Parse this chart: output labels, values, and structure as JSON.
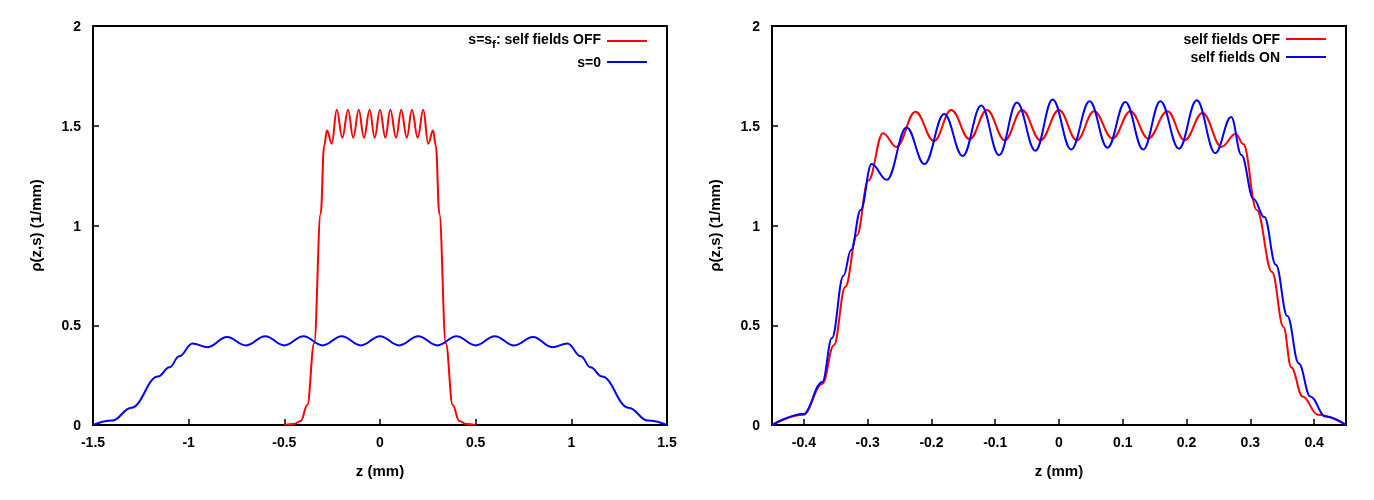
{
  "chart_data": [
    {
      "type": "line",
      "xlabel": "z (mm)",
      "ylabel": "ρ(z,s) (1/mm)",
      "xlim": [
        -1.5,
        1.5
      ],
      "ylim": [
        0,
        2
      ],
      "xticks": [
        -1.5,
        -1,
        -0.5,
        0,
        0.5,
        1,
        1.5
      ],
      "yticks": [
        0,
        0.5,
        1,
        1.5,
        2
      ],
      "legend": "top right",
      "grid": false,
      "marker": "none",
      "series": [
        {
          "name": "s=s$_{f}$: self fields OFF",
          "color": "#ff0000",
          "x": [
            -0.5,
            -0.45,
            -0.414,
            -0.38,
            -0.344,
            -0.31,
            -0.292,
            -0.277,
            -0.252,
            -0.226,
            -0.197,
            -0.167,
            -0.14,
            -0.111,
            -0.084,
            -0.054,
            -0.028,
            0,
            0.028,
            0.054,
            0.084,
            0.111,
            0.14,
            0.167,
            0.197,
            0.226,
            0.252,
            0.277,
            0.292,
            0.31,
            0.344,
            0.38,
            0.414,
            0.45,
            0.5
          ],
          "values": [
            0,
            0.005,
            0.02,
            0.1,
            0.41,
            1.06,
            1.4,
            1.476,
            1.41,
            1.58,
            1.44,
            1.58,
            1.44,
            1.58,
            1.44,
            1.58,
            1.44,
            1.58,
            1.44,
            1.58,
            1.44,
            1.58,
            1.44,
            1.58,
            1.44,
            1.58,
            1.41,
            1.476,
            1.4,
            1.06,
            0.41,
            0.1,
            0.02,
            0.005,
            0
          ]
        },
        {
          "name": "s=0",
          "color": "#0000ff",
          "x": [
            -1.5,
            -1.4,
            -1.3,
            -1.16,
            -1.1,
            -1.05,
            -0.98,
            -0.9,
            -0.8,
            -0.7,
            -0.6,
            -0.5,
            -0.4,
            -0.3,
            -0.2,
            -0.1,
            0,
            0.1,
            0.2,
            0.3,
            0.4,
            0.5,
            0.6,
            0.7,
            0.8,
            0.9,
            0.98,
            1.05,
            1.1,
            1.16,
            1.3,
            1.4,
            1.5
          ],
          "values": [
            0,
            0.022,
            0.086,
            0.243,
            0.289,
            0.344,
            0.408,
            0.39,
            0.441,
            0.399,
            0.445,
            0.399,
            0.445,
            0.399,
            0.445,
            0.399,
            0.445,
            0.399,
            0.445,
            0.399,
            0.445,
            0.399,
            0.445,
            0.399,
            0.441,
            0.39,
            0.408,
            0.344,
            0.289,
            0.243,
            0.086,
            0.022,
            0
          ]
        }
      ]
    },
    {
      "type": "line",
      "xlabel": "z (mm)",
      "ylabel": "ρ(z,s) (1/mm)",
      "xlim": [
        -0.45,
        0.45
      ],
      "ylim": [
        0,
        2
      ],
      "xticks": [
        -0.4,
        -0.3,
        -0.2,
        -0.1,
        0,
        0.1,
        0.2,
        0.3,
        0.4
      ],
      "yticks": [
        0,
        0.5,
        1,
        1.5,
        2
      ],
      "legend": "top right",
      "grid": false,
      "marker": "none",
      "series": [
        {
          "name": "self fields OFF",
          "color": "#ff0000",
          "x": [
            -0.45,
            -0.401,
            -0.371,
            -0.353,
            -0.335,
            -0.317,
            -0.299,
            -0.276,
            -0.255,
            -0.225,
            -0.196,
            -0.169,
            -0.14,
            -0.113,
            -0.085,
            -0.058,
            -0.029,
            0,
            0.028,
            0.055,
            0.084,
            0.112,
            0.14,
            0.17,
            0.197,
            0.225,
            0.255,
            0.277,
            0.289,
            0.31,
            0.334,
            0.352,
            0.364,
            0.382,
            0.406,
            0.45
          ],
          "values": [
            0,
            0.051,
            0.207,
            0.4,
            0.693,
            0.95,
            1.225,
            1.463,
            1.394,
            1.57,
            1.423,
            1.579,
            1.432,
            1.579,
            1.427,
            1.579,
            1.427,
            1.579,
            1.427,
            1.573,
            1.436,
            1.573,
            1.436,
            1.573,
            1.427,
            1.564,
            1.394,
            1.46,
            1.408,
            1.078,
            0.767,
            0.491,
            0.29,
            0.143,
            0.051,
            0
          ]
        },
        {
          "name": "self fields ON",
          "color": "#0000ff",
          "x": [
            -0.45,
            -0.401,
            -0.371,
            -0.356,
            -0.338,
            -0.326,
            -0.311,
            -0.294,
            -0.27,
            -0.239,
            -0.211,
            -0.18,
            -0.151,
            -0.122,
            -0.094,
            -0.066,
            -0.037,
            -0.01,
            0.019,
            0.048,
            0.076,
            0.104,
            0.132,
            0.159,
            0.188,
            0.216,
            0.245,
            0.27,
            0.286,
            0.305,
            0.322,
            0.34,
            0.358,
            0.376,
            0.394,
            0.418,
            0.45
          ],
          "values": [
            0,
            0.055,
            0.216,
            0.436,
            0.748,
            0.877,
            1.078,
            1.308,
            1.229,
            1.491,
            1.308,
            1.559,
            1.348,
            1.601,
            1.353,
            1.616,
            1.375,
            1.632,
            1.381,
            1.623,
            1.39,
            1.619,
            1.381,
            1.623,
            1.385,
            1.628,
            1.363,
            1.544,
            1.353,
            1.133,
            1.042,
            0.803,
            0.546,
            0.308,
            0.143,
            0.042,
            0
          ]
        }
      ]
    }
  ]
}
